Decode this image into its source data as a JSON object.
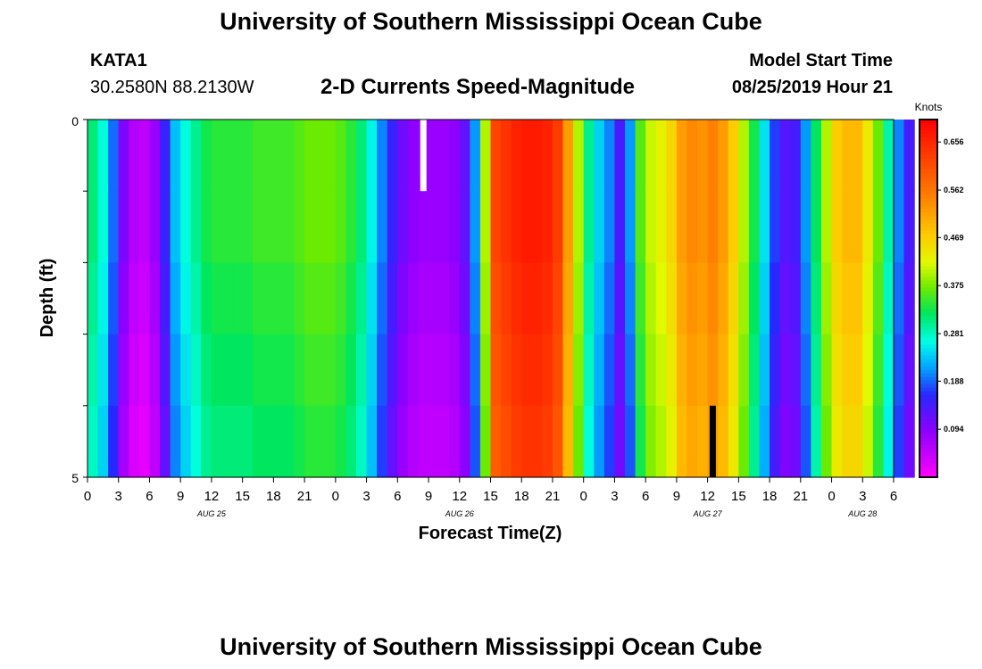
{
  "header": {
    "title": "University of Southern Mississippi Ocean Cube",
    "station": "KATA1",
    "coords": "30.2580N 88.2130W",
    "plot_title": "2-D Currents Speed-Magnitude",
    "start_label": "Model Start Time",
    "start_time": "08/25/2019 Hour 21"
  },
  "footer": {
    "title": "University of Southern Mississippi Ocean Cube"
  },
  "chart_data": {
    "type": "heatmap",
    "title": "2-D Currents Speed-Magnitude",
    "xlabel": "Forecast Time(Z)",
    "ylabel": "Depth (ft)",
    "ylim": [
      0,
      5
    ],
    "y_tick_labels": [
      "0",
      "5"
    ],
    "x_tick_labels": [
      "0",
      "3",
      "6",
      "9",
      "12",
      "15",
      "18",
      "21",
      "0",
      "3",
      "6",
      "9",
      "12",
      "15",
      "18",
      "21",
      "0",
      "3",
      "6",
      "9",
      "12",
      "15",
      "18",
      "21",
      "0",
      "3",
      "6"
    ],
    "day_labels": [
      {
        "label": "AUG 25",
        "hour": 12
      },
      {
        "label": "AUG 26",
        "hour": 36
      },
      {
        "label": "AUG 27",
        "hour": 60
      },
      {
        "label": "AUG 28",
        "hour": 75
      }
    ],
    "x_range_hours": [
      0,
      78
    ],
    "hours_per_column": 1,
    "depth_rows": 5,
    "colorbar": {
      "unit": "Knots",
      "min": 0.0,
      "max": 0.7,
      "ticks": [
        0.094,
        0.188,
        0.281,
        0.375,
        0.469,
        0.562,
        0.656
      ]
    },
    "speed_knots_surface": [
      0.31,
      0.27,
      0.19,
      0.1,
      0.06,
      0.05,
      0.08,
      0.15,
      0.23,
      0.27,
      0.3,
      0.33,
      0.34,
      0.34,
      0.34,
      0.34,
      0.35,
      0.35,
      0.35,
      0.35,
      0.36,
      0.37,
      0.37,
      0.37,
      0.36,
      0.34,
      0.31,
      0.26,
      0.2,
      0.15,
      0.11,
      0.09,
      0.08,
      0.08,
      0.08,
      0.09,
      0.12,
      0.21,
      0.4,
      0.62,
      0.64,
      0.66,
      0.67,
      0.67,
      0.66,
      0.63,
      0.52,
      0.4,
      0.3,
      0.24,
      0.2,
      0.14,
      0.21,
      0.36,
      0.41,
      0.43,
      0.46,
      0.52,
      0.54,
      0.53,
      0.55,
      0.52,
      0.47,
      0.4,
      0.33,
      0.25,
      0.17,
      0.13,
      0.14,
      0.21,
      0.32,
      0.4,
      0.47,
      0.49,
      0.49,
      0.44,
      0.37,
      0.29,
      0.2,
      0.14
    ],
    "row_offsets_knots": [
      0.0,
      0.0,
      -0.01,
      -0.02,
      -0.03
    ],
    "missing_cells": [
      {
        "hour": 32.5,
        "row": 0,
        "value": "white"
      },
      {
        "hour": 60.5,
        "row": 4,
        "value": "black"
      }
    ]
  }
}
